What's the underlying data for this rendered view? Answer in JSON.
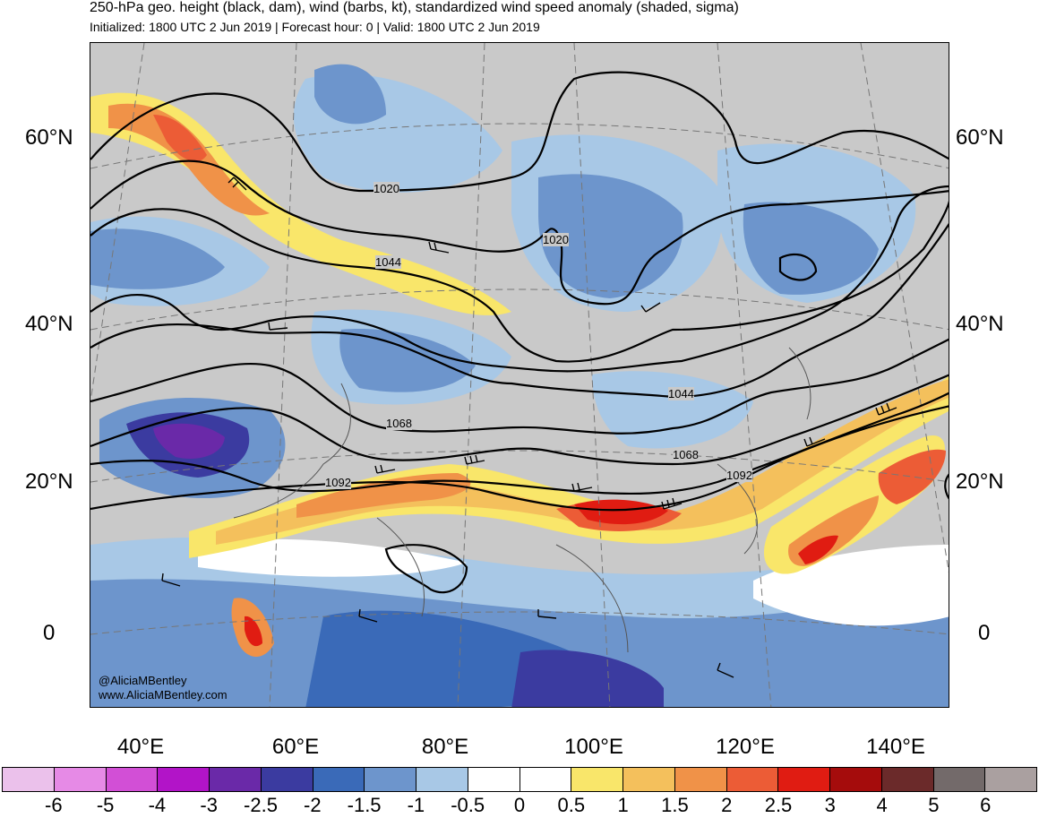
{
  "header": {
    "title": "250-hPa geo. height (black, dam), wind (barbs, kt), standardized wind speed anomaly (shaded, sigma)",
    "subtitle": "Initialized: 1800 UTC 2 Jun 2019 | Forecast hour: 0 | Valid: 1800 UTC 2 Jun 2019"
  },
  "map": {
    "lat_labels": [
      "60°N",
      "40°N",
      "20°N",
      "0"
    ],
    "lon_labels": [
      "40°E",
      "60°E",
      "80°E",
      "100°E",
      "120°E",
      "140°E"
    ],
    "contour_labels": [
      "1020",
      "1020",
      "1044",
      "1044",
      "1068",
      "1068",
      "1092",
      "1092"
    ],
    "credit_handle": "@AliciaMBentley",
    "credit_url": "www.AliciaMBentley.com",
    "background_color": "#c9c9c9"
  },
  "colorbar": {
    "tick_labels": [
      "-6",
      "-5",
      "-4",
      "-3",
      "-2.5",
      "-2",
      "-1.5",
      "-1",
      "-0.5",
      "0",
      "0.5",
      "1",
      "1.5",
      "2",
      "2.5",
      "3",
      "4",
      "5",
      "6"
    ],
    "colors": [
      "#ebc1eb",
      "#e68ae6",
      "#d24fd6",
      "#b214c8",
      "#6a29a8",
      "#3b3ba0",
      "#3a6ab8",
      "#6d95cc",
      "#a8c8e6",
      "#ffffff",
      "#ffffff",
      "#f9e66a",
      "#f4c05c",
      "#f09248",
      "#ec5c36",
      "#e01c12",
      "#a50c0c",
      "#6b2a2a",
      "#736a6a",
      "#aaa0a0"
    ]
  }
}
